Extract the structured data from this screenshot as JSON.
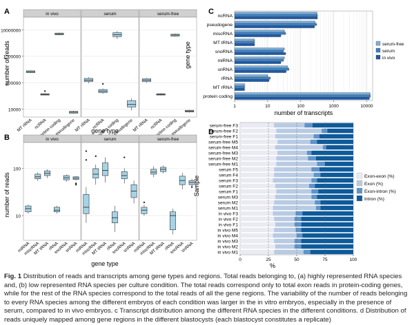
{
  "figure": {
    "colors": {
      "box_fill": "#a6d3e6",
      "box_stroke": "#333333",
      "strip_bg": "#d0d0d0",
      "panel_bg": "#ffffff",
      "grid": "#e3e3e3",
      "serum_free": "#7fb0da",
      "serum": "#3f7fbf",
      "in_vivo": "#1f5aa6",
      "exon_exon": "#eaeaf3",
      "exon": "#b8cbe3",
      "exon_intron": "#5f93c9",
      "intron": "#0e5a9a"
    }
  },
  "panel_a": {
    "letter": "A",
    "ylabel": "number of reads",
    "xlabel": "gene type",
    "facets": [
      "in vivo",
      "serum",
      "serum-free"
    ],
    "categories": [
      "MT rRNA",
      "ncRNA",
      "protein coding",
      "pseudogene"
    ],
    "yticks": [
      "10000000",
      "1000000",
      "100000",
      "10000"
    ]
  },
  "panel_b": {
    "letter": "B",
    "ylabel": "number of reads",
    "xlabel": "gene type",
    "facets": [
      "in vivo",
      "serum",
      "serum-free"
    ],
    "categories": [
      "miRNA",
      "miscRNA",
      "MT tRNA",
      "rRNA",
      "snoRNA",
      "snRNA"
    ],
    "yticks": [
      "100",
      "10"
    ]
  },
  "panel_c": {
    "letter": "C",
    "ylabel": "gene type",
    "xlabel": "number of transcripts",
    "xticks": [
      "1",
      "10",
      "100",
      "1000",
      "10000"
    ],
    "legend": [
      "serum-free",
      "serum",
      "in vivo"
    ]
  },
  "panel_d": {
    "letter": "D",
    "ylabel": "Sample",
    "xlabel": "%",
    "xticks": [
      "0",
      "25",
      "50",
      "75",
      "100"
    ],
    "legend": [
      "Exon-exon (%)",
      "Exon (%)",
      "Exon-intron (%)",
      "Intron (%)"
    ]
  },
  "caption": {
    "fig_label": "Fig. 1",
    "text": "Distribution of reads and transcripts among gene types and regions. Total reads belonging to, (a) highly represented RNA species and, (b) low represented RNA species per culture condition. The total reads correspond only to total exon reads in protein-coding genes, while for the rest of the RNA species correspond to the total reads of all the gene regions. The variability of the number of reads belonging to every RNA species among the different embryos of each condition was larger in the in vitro embryos, especially in the presence of serum, compared to in vivo embryos. c Transcript distribution among the different RNA species in the different conditions. d Distribution of reads uniquely mapped among gene regions in the different blastocysts (each blastocyst constitutes a replicate)"
  },
  "chart_data": [
    {
      "type": "box",
      "panel": "A",
      "title": "",
      "xlabel": "gene type",
      "ylabel": "number of reads",
      "yscale": "log",
      "ylim": [
        5000,
        30000000
      ],
      "categories": [
        "MT rRNA",
        "ncRNA",
        "protein coding",
        "pseudogene"
      ],
      "facets": [
        {
          "name": "in vivo",
          "boxes": [
            {
              "q1": 240000,
              "med": 260000,
              "q3": 280000,
              "lo": 230000,
              "hi": 290000,
              "outliers": []
            },
            {
              "q1": 34000,
              "med": 36000,
              "q3": 38000,
              "lo": 33000,
              "hi": 40000,
              "outliers": [
                48000
              ]
            },
            {
              "q1": 6500000,
              "med": 7000000,
              "q3": 7500000,
              "lo": 6200000,
              "hi": 7800000,
              "outliers": []
            },
            {
              "q1": 7000,
              "med": 7600,
              "q3": 8200,
              "lo": 6800,
              "hi": 8600,
              "outliers": []
            }
          ]
        },
        {
          "name": "serum",
          "boxes": [
            {
              "q1": 110000,
              "med": 125000,
              "q3": 145000,
              "lo": 95000,
              "hi": 160000,
              "outliers": []
            },
            {
              "q1": 42000,
              "med": 48000,
              "q3": 55000,
              "lo": 38000,
              "hi": 60000,
              "outliers": [
                90000
              ]
            },
            {
              "q1": 5500000,
              "med": 6500000,
              "q3": 7800000,
              "lo": 4500000,
              "hi": 9000000,
              "outliers": []
            },
            {
              "q1": 12000,
              "med": 15000,
              "q3": 21000,
              "lo": 9000,
              "hi": 25000,
              "outliers": []
            }
          ]
        },
        {
          "name": "serum-free",
          "boxes": [
            {
              "q1": 110000,
              "med": 125000,
              "q3": 140000,
              "lo": 100000,
              "hi": 150000,
              "outliers": []
            },
            {
              "q1": 34000,
              "med": 36000,
              "q3": 38000,
              "lo": 33000,
              "hi": 40000,
              "outliers": []
            },
            {
              "q1": 5800000,
              "med": 6300000,
              "q3": 6800000,
              "lo": 5500000,
              "hi": 7200000,
              "outliers": []
            },
            {
              "q1": 7800,
              "med": 8400,
              "q3": 9000,
              "lo": 7400,
              "hi": 9400,
              "outliers": []
            }
          ]
        }
      ]
    },
    {
      "type": "box",
      "panel": "B",
      "title": "",
      "xlabel": "gene type",
      "ylabel": "number of reads",
      "yscale": "log",
      "ylim": [
        3,
        350
      ],
      "categories": [
        "miRNA",
        "miscRNA",
        "MT tRNA",
        "rRNA",
        "snoRNA",
        "snRNA"
      ],
      "facets": [
        {
          "name": "in vivo",
          "boxes": [
            {
              "q1": 12,
              "med": 14,
              "q3": 16,
              "lo": 11,
              "hi": 17,
              "outliers": []
            },
            {
              "q1": 60,
              "med": 66,
              "q3": 75,
              "lo": 54,
              "hi": 82,
              "outliers": []
            },
            {
              "q1": 70,
              "med": 78,
              "q3": 88,
              "lo": 62,
              "hi": 95,
              "outliers": []
            },
            {
              "q1": 12,
              "med": 13,
              "q3": 15,
              "lo": 11,
              "hi": 16,
              "outliers": []
            },
            {
              "q1": 57,
              "med": 63,
              "q3": 70,
              "lo": 52,
              "hi": 74,
              "outliers": []
            },
            {
              "q1": 58,
              "med": 62,
              "q3": 66,
              "lo": 55,
              "hi": 68,
              "outliers": [
                48,
                45
              ]
            }
          ]
        },
        {
          "name": "serum",
          "boxes": [
            {
              "q1": 11,
              "med": 15,
              "q3": 28,
              "lo": 7,
              "hi": 40,
              "outliers": [
                230,
                150
              ]
            },
            {
              "q1": 62,
              "med": 75,
              "q3": 98,
              "lo": 45,
              "hi": 120,
              "outliers": [
                180
              ]
            },
            {
              "q1": 70,
              "med": 90,
              "q3": 130,
              "lo": 50,
              "hi": 170,
              "outliers": []
            },
            {
              "q1": 7,
              "med": 9,
              "q3": 12,
              "lo": 4.5,
              "hi": 16,
              "outliers": []
            },
            {
              "q1": 60,
              "med": 70,
              "q3": 85,
              "lo": 48,
              "hi": 100,
              "outliers": [
                170
              ]
            },
            {
              "q1": 24,
              "med": 33,
              "q3": 45,
              "lo": 18,
              "hi": 55,
              "outliers": []
            }
          ]
        },
        {
          "name": "serum-free",
          "boxes": [
            {
              "q1": 11,
              "med": 13,
              "q3": 15,
              "lo": 10,
              "hi": 17,
              "outliers": [
                19
              ]
            },
            {
              "q1": 75,
              "med": 83,
              "q3": 95,
              "lo": 65,
              "hi": 110,
              "outliers": []
            },
            {
              "q1": 85,
              "med": 95,
              "q3": 105,
              "lo": 78,
              "hi": 115,
              "outliers": []
            },
            {
              "q1": 5,
              "med": 10,
              "q3": 12,
              "lo": 4,
              "hi": 14,
              "outliers": []
            },
            {
              "q1": 45,
              "med": 55,
              "q3": 68,
              "lo": 36,
              "hi": 80,
              "outliers": []
            },
            {
              "q1": 45,
              "med": 50,
              "q3": 55,
              "lo": 40,
              "hi": 60,
              "outliers": [
                40
              ]
            }
          ]
        }
      ]
    },
    {
      "type": "bar",
      "panel": "C",
      "orientation": "horizontal",
      "title": "",
      "xlabel": "number of transcripts",
      "ylabel": "gene type",
      "xscale": "log",
      "xlim": [
        1,
        15000
      ],
      "categories": [
        "ncRNA",
        "pseudogene",
        "miscRNA",
        "MT tRNA",
        "snoRNA",
        "miRNA",
        "snRNA",
        "rRNA",
        "MT rRNA",
        "protein coding"
      ],
      "series": [
        {
          "name": "serum-free",
          "values": [
            310,
            270,
            32,
            4,
            32,
            32,
            40,
            10,
            2,
            12500
          ]
        },
        {
          "name": "serum",
          "values": [
            320,
            300,
            35,
            4,
            30,
            30,
            44,
            12,
            2,
            12800
          ]
        },
        {
          "name": "in vivo",
          "values": [
            320,
            260,
            25,
            4,
            35,
            25,
            36,
            11,
            2,
            12000
          ]
        }
      ],
      "legend": "right",
      "grid": true
    },
    {
      "type": "stacked_bar",
      "panel": "D",
      "orientation": "horizontal",
      "title": "",
      "xlabel": "%",
      "ylabel": "Sample",
      "xlim": [
        0,
        100
      ],
      "categories": [
        "serum-free F3",
        "serum-free F2",
        "serum-free F1",
        "serum-free M5",
        "serum-free M4",
        "serum-free M3",
        "serum-free M2",
        "serum-free M1",
        "serum F5",
        "serum F4",
        "serum F3",
        "serum F2",
        "serum F1",
        "serum M3",
        "serum M2",
        "serum M1",
        "in vivo F3",
        "in vivo F2",
        "in vivo F1",
        "in vivo M5",
        "in vivo M4",
        "in vivo M3",
        "in vivo M2",
        "in vivo M1"
      ],
      "series": [
        {
          "name": "Exon-exon (%)",
          "values": [
            30,
            32,
            31,
            33,
            31,
            33,
            32,
            32,
            30,
            30,
            29,
            31,
            32,
            31,
            30,
            29,
            29,
            30,
            31,
            30,
            29,
            30,
            31,
            30
          ]
        },
        {
          "name": "Exon (%)",
          "values": [
            27,
            40,
            34,
            29,
            42,
            26,
            28,
            36,
            33,
            35,
            34,
            30,
            31,
            32,
            36,
            38,
            20,
            18,
            17,
            19,
            21,
            18,
            17,
            26
          ]
        },
        {
          "name": "Exon-intron (%)",
          "values": [
            7,
            5,
            5,
            6,
            3,
            4,
            7,
            7,
            7,
            6,
            5,
            5,
            6,
            5,
            5,
            4,
            6,
            6,
            6,
            5,
            5,
            6,
            6,
            6
          ]
        },
        {
          "name": "Intron (%)",
          "values": [
            36,
            23,
            30,
            32,
            24,
            37,
            33,
            25,
            30,
            29,
            32,
            34,
            31,
            32,
            29,
            29,
            45,
            46,
            46,
            46,
            45,
            46,
            46,
            38
          ]
        }
      ],
      "legend": "right"
    }
  ]
}
